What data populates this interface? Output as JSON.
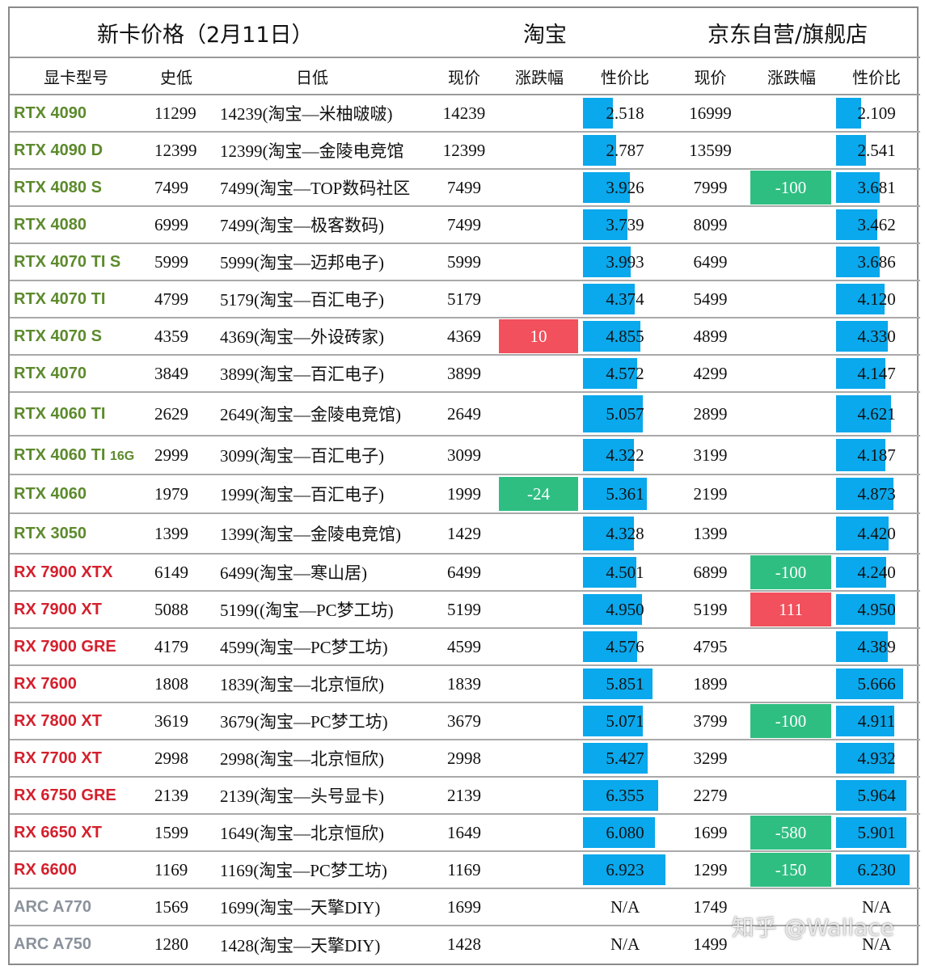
{
  "header": {
    "title": "新卡价格（2月11日）",
    "taobao": "淘宝",
    "jd": "京东自营/旗舰店"
  },
  "columns": [
    "显卡型号",
    "史低",
    "日低",
    "现价",
    "涨跌幅",
    "性价比",
    "现价",
    "涨跌幅",
    "性价比"
  ],
  "colors": {
    "nvidia": "#5c8a2c",
    "amd": "#d51f2c",
    "intel": "#8b929c",
    "bar": "#0aa8ec",
    "up": "#f1505c",
    "down": "#2fbe82"
  },
  "rows": [
    {
      "brand": "nv",
      "model": "RTX 4090",
      "suffix": "",
      "low": "11299",
      "daylow": "14239(淘宝—米柚啵啵)",
      "tb_price": "14239",
      "tb_change": "",
      "tb_dir": "",
      "tb_pp": "2.518",
      "jd_price": "16999",
      "jd_change": "",
      "jd_dir": "",
      "jd_pp": "2.109"
    },
    {
      "brand": "nv",
      "model": "RTX 4090 D",
      "suffix": "",
      "low": "12399",
      "daylow": "12399(淘宝—金陵电竞馆",
      "tb_price": "12399",
      "tb_change": "",
      "tb_dir": "",
      "tb_pp": "2.787",
      "jd_price": "13599",
      "jd_change": "",
      "jd_dir": "",
      "jd_pp": "2.541"
    },
    {
      "brand": "nv",
      "model": "RTX 4080 S",
      "suffix": "",
      "low": "7499",
      "daylow": "7499(淘宝—TOP数码社区",
      "tb_price": "7499",
      "tb_change": "",
      "tb_dir": "",
      "tb_pp": "3.926",
      "jd_price": "7999",
      "jd_change": "-100",
      "jd_dir": "down",
      "jd_pp": "3.681"
    },
    {
      "brand": "nv",
      "model": "RTX 4080",
      "suffix": "",
      "low": "6999",
      "daylow": "7499(淘宝—极客数码)",
      "tb_price": "7499",
      "tb_change": "",
      "tb_dir": "",
      "tb_pp": "3.739",
      "jd_price": "8099",
      "jd_change": "",
      "jd_dir": "",
      "jd_pp": "3.462"
    },
    {
      "brand": "nv",
      "model": "RTX 4070 TI S",
      "suffix": "",
      "low": "5999",
      "daylow": "5999(淘宝—迈邦电子)",
      "tb_price": "5999",
      "tb_change": "",
      "tb_dir": "",
      "tb_pp": "3.993",
      "jd_price": "6499",
      "jd_change": "",
      "jd_dir": "",
      "jd_pp": "3.686"
    },
    {
      "brand": "nv",
      "model": "RTX 4070 TI",
      "suffix": "",
      "low": "4799",
      "daylow": "5179(淘宝—百汇电子)",
      "tb_price": "5179",
      "tb_change": "",
      "tb_dir": "",
      "tb_pp": "4.374",
      "jd_price": "5499",
      "jd_change": "",
      "jd_dir": "",
      "jd_pp": "4.120"
    },
    {
      "brand": "nv",
      "model": "RTX 4070 S",
      "suffix": "",
      "low": "4359",
      "daylow": "4369(淘宝—外设砖家)",
      "tb_price": "4369",
      "tb_change": "10",
      "tb_dir": "up",
      "tb_pp": "4.855",
      "jd_price": "4899",
      "jd_change": "",
      "jd_dir": "",
      "jd_pp": "4.330"
    },
    {
      "brand": "nv",
      "model": "RTX 4070",
      "suffix": "",
      "low": "3849",
      "daylow": "3899(淘宝—百汇电子)",
      "tb_price": "3899",
      "tb_change": "",
      "tb_dir": "",
      "tb_pp": "4.572",
      "jd_price": "4299",
      "jd_change": "",
      "jd_dir": "",
      "jd_pp": "4.147"
    },
    {
      "brand": "nv",
      "model": "RTX 4060 TI",
      "suffix": "",
      "low": "2629",
      "daylow": "2649(淘宝—金陵电竞馆)",
      "tb_price": "2649",
      "tb_change": "",
      "tb_dir": "",
      "tb_pp": "5.057",
      "jd_price": "2899",
      "jd_change": "",
      "jd_dir": "",
      "jd_pp": "4.621"
    },
    {
      "brand": "nv",
      "model": "RTX 4060 TI",
      "suffix": "16G",
      "low": "2999",
      "daylow": "3099(淘宝—百汇电子)",
      "tb_price": "3099",
      "tb_change": "",
      "tb_dir": "",
      "tb_pp": "4.322",
      "jd_price": "3199",
      "jd_change": "",
      "jd_dir": "",
      "jd_pp": "4.187"
    },
    {
      "brand": "nv",
      "model": "RTX 4060",
      "suffix": "",
      "low": "1979",
      "daylow": "1999(淘宝—百汇电子)",
      "tb_price": "1999",
      "tb_change": "-24",
      "tb_dir": "down",
      "tb_pp": "5.361",
      "jd_price": "2199",
      "jd_change": "",
      "jd_dir": "",
      "jd_pp": "4.873"
    },
    {
      "brand": "nv",
      "model": "RTX 3050",
      "suffix": "",
      "low": "1399",
      "daylow": "1399(淘宝—金陵电竞馆)",
      "tb_price": "1429",
      "tb_change": "",
      "tb_dir": "",
      "tb_pp": "4.328",
      "jd_price": "1399",
      "jd_change": "",
      "jd_dir": "",
      "jd_pp": "4.420"
    },
    {
      "brand": "amd",
      "model": "RX 7900 XTX",
      "suffix": "",
      "low": "6149",
      "daylow": "6499(淘宝—寒山居)",
      "tb_price": "6499",
      "tb_change": "",
      "tb_dir": "",
      "tb_pp": "4.501",
      "jd_price": "6899",
      "jd_change": "-100",
      "jd_dir": "down",
      "jd_pp": "4.240"
    },
    {
      "brand": "amd",
      "model": "RX 7900 XT",
      "suffix": "",
      "low": "5088",
      "daylow": "5199((淘宝—PC梦工坊)",
      "tb_price": "5199",
      "tb_change": "",
      "tb_dir": "",
      "tb_pp": "4.950",
      "jd_price": "5199",
      "jd_change": "111",
      "jd_dir": "up",
      "jd_pp": "4.950"
    },
    {
      "brand": "amd",
      "model": "RX 7900 GRE",
      "suffix": "",
      "low": "4179",
      "daylow": "4599(淘宝—PC梦工坊)",
      "tb_price": "4599",
      "tb_change": "",
      "tb_dir": "",
      "tb_pp": "4.576",
      "jd_price": "4795",
      "jd_change": "",
      "jd_dir": "",
      "jd_pp": "4.389"
    },
    {
      "brand": "amd",
      "model": "RX 7600",
      "suffix": "",
      "low": "1808",
      "daylow": "1839(淘宝—北京恒欣)",
      "tb_price": "1839",
      "tb_change": "",
      "tb_dir": "",
      "tb_pp": "5.851",
      "jd_price": "1899",
      "jd_change": "",
      "jd_dir": "",
      "jd_pp": "5.666"
    },
    {
      "brand": "amd",
      "model": "RX 7800 XT",
      "suffix": "",
      "low": "3619",
      "daylow": "3679(淘宝—PC梦工坊)",
      "tb_price": "3679",
      "tb_change": "",
      "tb_dir": "",
      "tb_pp": "5.071",
      "jd_price": "3799",
      "jd_change": "-100",
      "jd_dir": "down",
      "jd_pp": "4.911"
    },
    {
      "brand": "amd",
      "model": "RX 7700 XT",
      "suffix": "",
      "low": "2998",
      "daylow": "2998(淘宝—北京恒欣)",
      "tb_price": "2998",
      "tb_change": "",
      "tb_dir": "",
      "tb_pp": "5.427",
      "jd_price": "3299",
      "jd_change": "",
      "jd_dir": "",
      "jd_pp": "4.932"
    },
    {
      "brand": "amd",
      "model": "RX 6750 GRE",
      "suffix": "",
      "low": "2139",
      "daylow": "2139(淘宝—头号显卡)",
      "tb_price": "2139",
      "tb_change": "",
      "tb_dir": "",
      "tb_pp": "6.355",
      "jd_price": "2279",
      "jd_change": "",
      "jd_dir": "",
      "jd_pp": "5.964"
    },
    {
      "brand": "amd",
      "model": "RX 6650 XT",
      "suffix": "",
      "low": "1599",
      "daylow": "1649(淘宝—北京恒欣)",
      "tb_price": "1649",
      "tb_change": "",
      "tb_dir": "",
      "tb_pp": "6.080",
      "jd_price": "1699",
      "jd_change": "-580",
      "jd_dir": "down",
      "jd_pp": "5.901"
    },
    {
      "brand": "amd",
      "model": "RX 6600",
      "suffix": "",
      "low": "1169",
      "daylow": "1169(淘宝—PC梦工坊)",
      "tb_price": "1169",
      "tb_change": "",
      "tb_dir": "",
      "tb_pp": "6.923",
      "jd_price": "1299",
      "jd_change": "-150",
      "jd_dir": "down",
      "jd_pp": "6.230"
    },
    {
      "brand": "intel",
      "model": "ARC A770",
      "suffix": "",
      "low": "1569",
      "daylow": "1699(淘宝—天擎DIY)",
      "tb_price": "1699",
      "tb_change": "",
      "tb_dir": "",
      "tb_pp": "N/A",
      "jd_price": "1749",
      "jd_change": "",
      "jd_dir": "",
      "jd_pp": "N/A"
    },
    {
      "brand": "intel",
      "model": "ARC A750",
      "suffix": "",
      "low": "1280",
      "daylow": "1428(淘宝—天擎DIY)",
      "tb_price": "1428",
      "tb_change": "",
      "tb_dir": "",
      "tb_pp": "N/A",
      "jd_price": "1499",
      "jd_change": "",
      "jd_dir": "",
      "jd_pp": "N/A"
    }
  ],
  "pp_max": 7.5,
  "watermark": "知乎 @Wallace"
}
